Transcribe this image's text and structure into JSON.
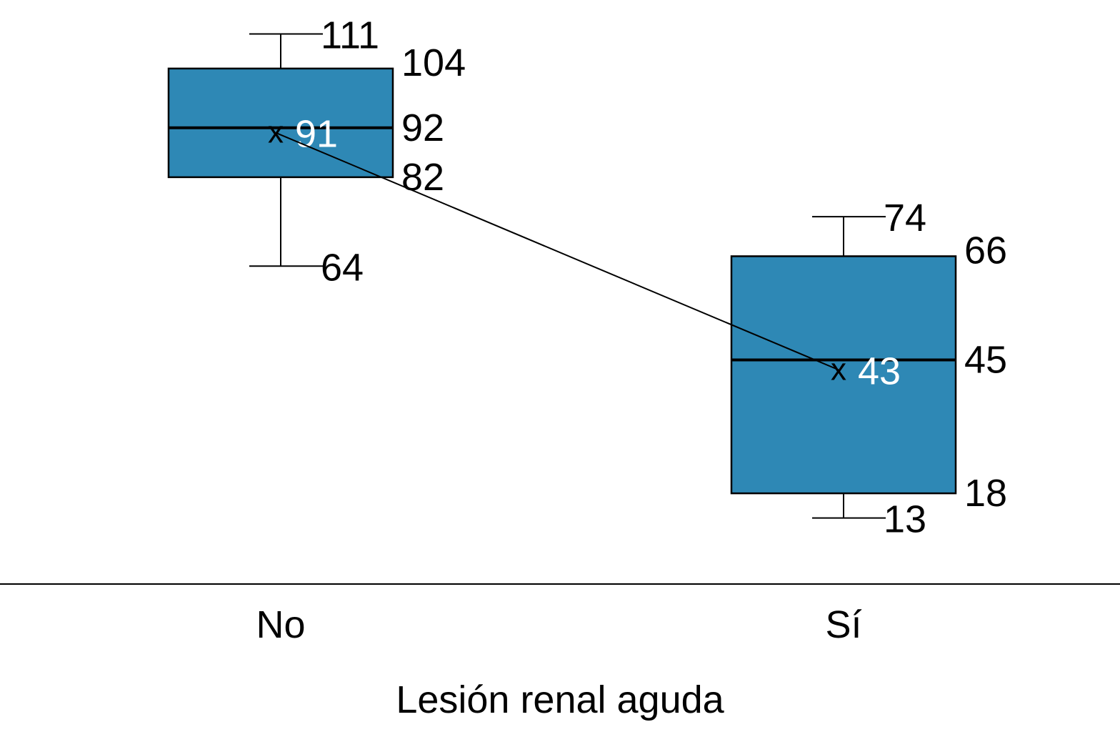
{
  "chart_data": {
    "type": "box",
    "title": "",
    "xlabel": "Lesión renal aguda",
    "ylabel": "",
    "categories": [
      "No",
      "Sí"
    ],
    "series": [
      {
        "name": "No",
        "min": 64,
        "q1": 82,
        "median": 92,
        "q3": 104,
        "max": 111,
        "mean": 91
      },
      {
        "name": "Sí",
        "min": 13,
        "q1": 18,
        "median": 45,
        "q3": 66,
        "max": 74,
        "mean": 43
      }
    ],
    "mean_line": true,
    "grid": false,
    "box_color": "#2e88b5",
    "label_color": "#000000",
    "mean_label_color": "#ffffff"
  }
}
